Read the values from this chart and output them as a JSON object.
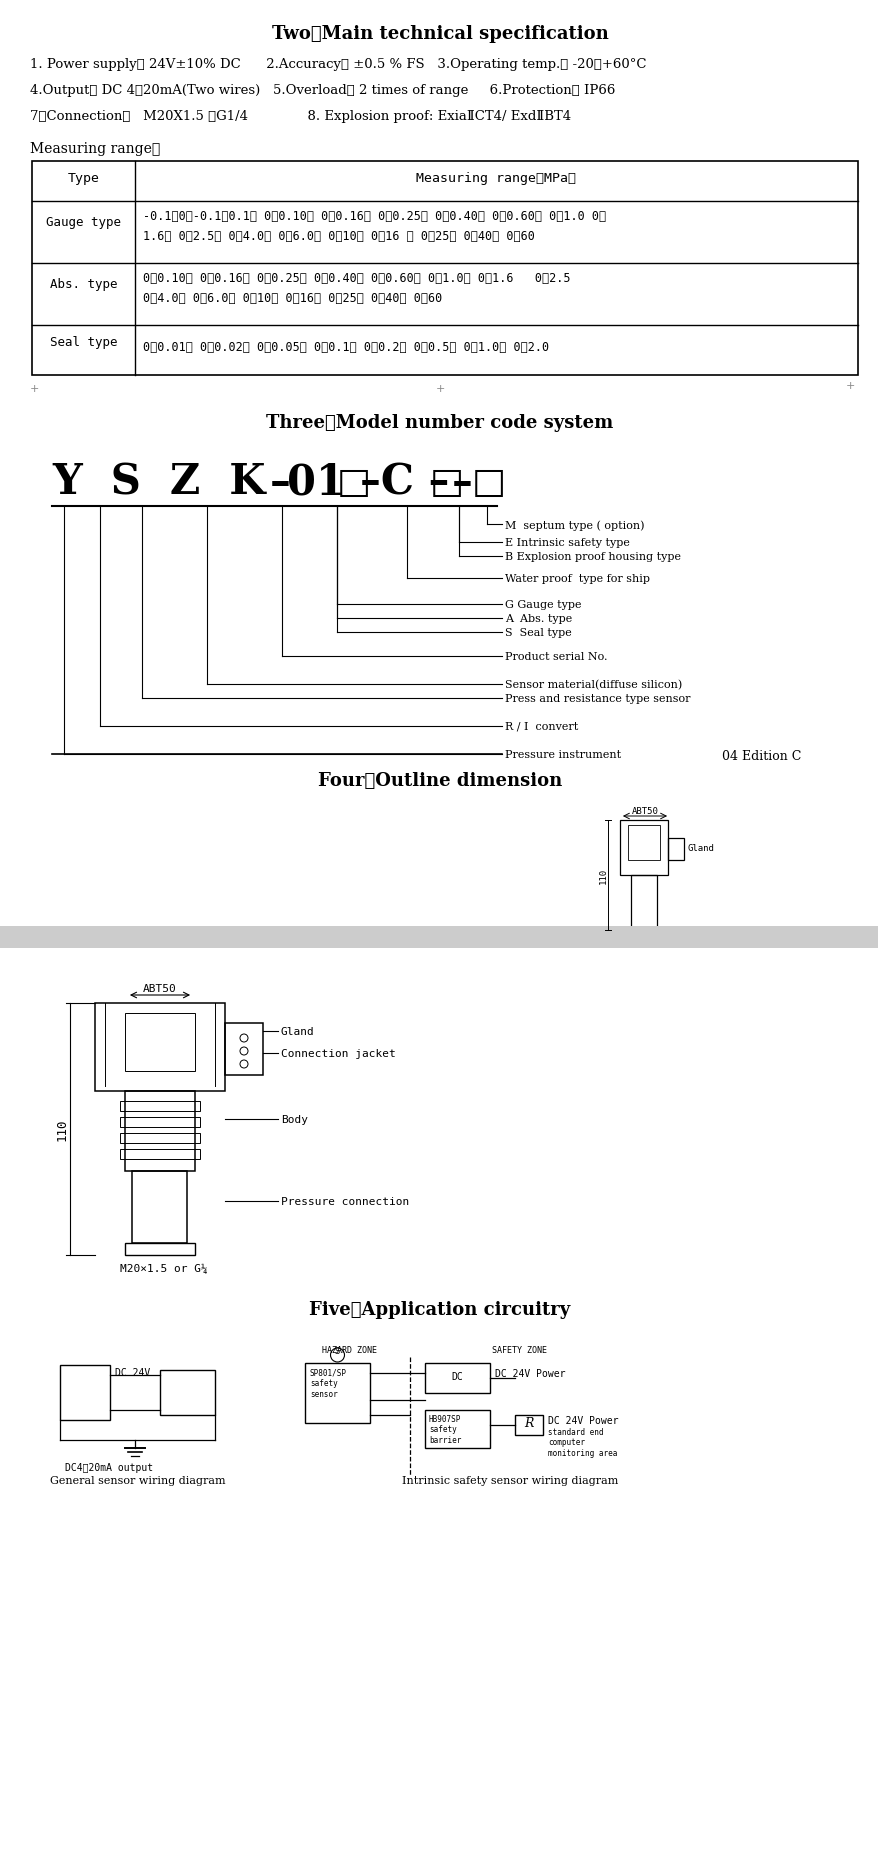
{
  "title2": "Two、Main technical specification",
  "spec1": "1. Power supply： 24V±10% DC      2.Accuracy： ±0.5 % FS   3.Operating temp.： -20～+60°C",
  "spec2": "4.Output： DC 4～20mA(Two wires)   5.Overload： 2 times of range     6.Protection： IP66",
  "spec3": "7、Connection：   M20X1.5 、G1/4              8. Explosion proof: ExiaⅡCT4/ ExdⅡBT4",
  "meas_label": "Measuring range：",
  "th1": "Type",
  "th2": "Measuring range（MPa）",
  "row1_type": "Gauge type",
  "row1_data1": "-0.1～0、-0.1～0.1、 0～0.10、 0～0.16、 0～0.25、 0～0.40、 0～0.60、 0～1.0 0～",
  "row1_data2": "1.6、 0～2.5、 0～4.0、 0～6.0、 0～10、 0～16 、 0～25、 0～40、 0～60",
  "row2_type": "Abs. type",
  "row2_data1": "0～0.10、 0～0.16、 0～0.25、 0～0.40、 0～0.60、 0～1.0、 0～1.6   0～2.5",
  "row2_data2": "0～4.0、 0～6.0、 0～10、 0～16、 0～25、 0～40、 0～60",
  "row3_type": "Seal type",
  "row3_data": "0～0.01、 0～0.02、 0～0.05、 0～0.1、 0～0.2、 0～0.5、 0～1.0、 0～2.0",
  "title3": "Three、Model number code system",
  "title4": "Four、Outline dimension",
  "title5": "Five、Application circuitry",
  "abt50": "ABT50",
  "gland": "Gland",
  "conn_jacket": "Connection jacket",
  "body_lbl": "Body",
  "press_conn": "Pressure connection",
  "m20": "M20×1.5 or G¼",
  "ann1": "M  septum type ( option)",
  "ann2": "E Intrinsic safety type",
  "ann3": "B Explosion proof housing type",
  "ann4": "Water proof  type for ship",
  "ann5": "G Gauge type",
  "ann6": "A  Abs. type",
  "ann7": "S  Seal type",
  "ann8": "Product serial No.",
  "ann9": "Sensor material(diffuse silicon)",
  "ann10": "Press and resistance type sensor",
  "ann11": "R / I  convert",
  "ann12": "Pressure instrument",
  "ann13": "04 Edition C",
  "hz_label": "HAZARD ZONE",
  "sf_label": "SAFETY ZONE",
  "dc24v": "DC 24V",
  "dc24v_pwr": "DC 24V Power",
  "dc24v_pwr2": "DC 24V Power",
  "ma_out": "DC4～20mA output",
  "gen_dia": "General sensor wiring diagram",
  "int_dia": "Intrinsic safety sensor wiring diagram",
  "sp_lbl": "SP801/SP\nsafety\nsensor",
  "hb_lbl": "HB907SP\nsafety\nbarrier",
  "r_lbl": "R",
  "std_lbl": "standard end\ncomputer\nmonitoring area",
  "num110": "110",
  "bg": "#ffffff"
}
